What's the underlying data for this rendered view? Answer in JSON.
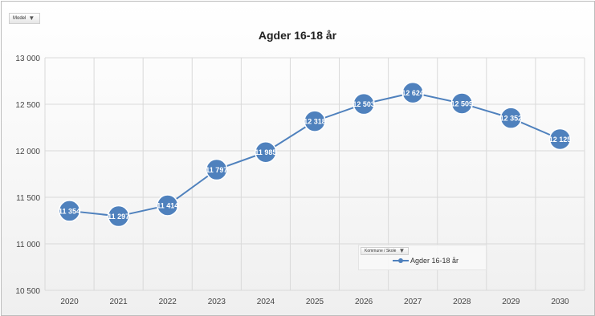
{
  "filters": {
    "model_label": "Model",
    "legend_filter_label": "Kommune / Skole"
  },
  "chart_data": {
    "type": "line",
    "title": "Agder 16-18 år",
    "xlabel": "",
    "ylabel": "",
    "categories": [
      "2020",
      "2021",
      "2022",
      "2023",
      "2024",
      "2025",
      "2026",
      "2027",
      "2028",
      "2029",
      "2030"
    ],
    "series": [
      {
        "name": "Agder 16-18 år",
        "values": [
          11354,
          11297,
          11414,
          11797,
          11985,
          12318,
          12503,
          12624,
          12509,
          12352,
          12125
        ],
        "labels": [
          "11 354",
          "11 297",
          "11 414",
          "11 797",
          "11 985",
          "12 318",
          "12 503",
          "12 624",
          "12 509",
          "12 352",
          "12 125"
        ]
      }
    ],
    "ylim": [
      10500,
      13000
    ],
    "yticks": [
      10500,
      11000,
      11500,
      12000,
      12500,
      13000
    ],
    "ytick_labels": [
      "10 500",
      "11 000",
      "11 500",
      "12 000",
      "12 500",
      "13 000"
    ],
    "grid": true,
    "legend": "bottom-center",
    "colors": {
      "line": "#4f81bd",
      "marker": "#4f81bd",
      "grid": "#d9d9d9",
      "data_label": "#ffffff"
    }
  }
}
